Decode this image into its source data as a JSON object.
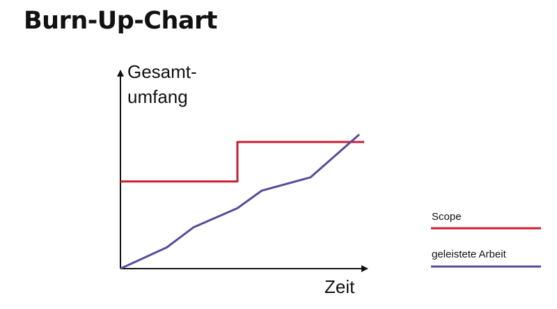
{
  "chart_data": {
    "type": "line",
    "title": "Burn-Up-Chart",
    "ylabel": [
      "Gesamt-",
      "umfang"
    ],
    "xlabel": "Zeit",
    "xlim": [
      0,
      10
    ],
    "ylim": [
      0,
      10
    ],
    "grid": false,
    "legend_position": "right",
    "series": [
      {
        "name": "Scope",
        "color": "#c81e32",
        "x": [
          0,
          4.8,
          4.8,
          10
        ],
        "y": [
          4.64,
          4.64,
          6.74,
          6.74
        ]
      },
      {
        "name": "geleistete Arbeit",
        "color": "#5a4a9a",
        "x": [
          0,
          1.9,
          3.0,
          4.8,
          5.8,
          7.8,
          9.8
        ],
        "y": [
          0,
          1.13,
          2.2,
          3.22,
          4.15,
          4.86,
          7.14
        ]
      }
    ]
  }
}
